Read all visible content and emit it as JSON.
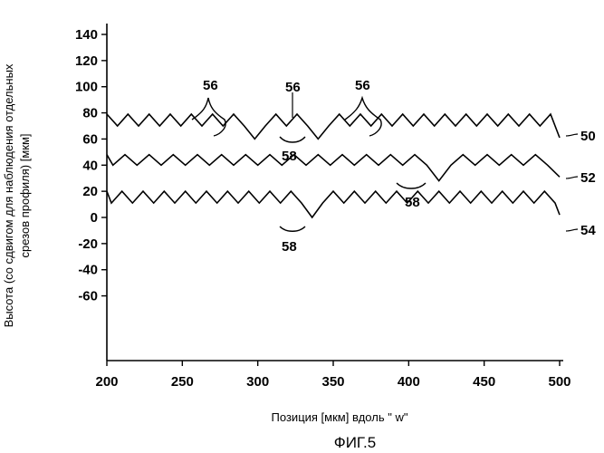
{
  "figure_caption": "ФИГ.5",
  "chart_data": {
    "type": "line",
    "xlabel": "Позиция [мкм] вдоль \" w\"",
    "ylabel_lines": [
      "Высота (со сдвигом для наблюдения отдельных",
      "срезов профиля)  [мкм]"
    ],
    "xlim": [
      200,
      500
    ],
    "ylim": [
      -85,
      150
    ],
    "x_ticks": [
      200,
      250,
      300,
      350,
      400,
      450,
      500
    ],
    "y_ticks": [
      140,
      120,
      100,
      80,
      60,
      40,
      20,
      0,
      -20,
      -40,
      -60
    ],
    "grid": false,
    "series": [
      {
        "name": "50",
        "x": [
          200,
          207,
          214,
          221,
          228,
          235,
          242,
          249,
          256,
          263,
          270,
          277,
          284,
          291,
          298,
          305,
          312,
          319,
          326,
          333,
          340,
          347,
          354,
          361,
          368,
          375,
          382,
          389,
          396,
          403,
          410,
          417,
          424,
          431,
          438,
          445,
          452,
          459,
          466,
          473,
          480,
          487,
          494,
          500
        ],
        "values": [
          79,
          70,
          79,
          70,
          79,
          70,
          79,
          70,
          79,
          70,
          79,
          70,
          79,
          70,
          60,
          70,
          79,
          70,
          79,
          70,
          60,
          70,
          79,
          70,
          79,
          70,
          79,
          70,
          79,
          70,
          79,
          70,
          79,
          70,
          79,
          70,
          79,
          70,
          79,
          70,
          79,
          70,
          79,
          61
        ]
      },
      {
        "name": "52",
        "x": [
          200,
          204,
          212,
          220,
          228,
          236,
          244,
          252,
          260,
          268,
          276,
          284,
          292,
          300,
          308,
          316,
          324,
          332,
          340,
          348,
          356,
          364,
          372,
          380,
          388,
          396,
          404,
          412,
          420,
          428,
          436,
          444,
          452,
          460,
          468,
          476,
          484,
          492,
          500
        ],
        "values": [
          48,
          40,
          48,
          40,
          48,
          40,
          48,
          40,
          48,
          40,
          48,
          40,
          48,
          40,
          48,
          40,
          48,
          40,
          48,
          40,
          48,
          40,
          48,
          40,
          48,
          40,
          48,
          40,
          28,
          40,
          48,
          40,
          48,
          40,
          48,
          40,
          48,
          40,
          31
        ]
      },
      {
        "name": "54",
        "x": [
          200,
          203,
          210,
          217,
          224,
          231,
          238,
          245,
          252,
          259,
          266,
          273,
          280,
          287,
          294,
          301,
          308,
          315,
          322,
          329,
          336,
          343,
          350,
          357,
          364,
          371,
          378,
          385,
          392,
          399,
          406,
          413,
          420,
          427,
          434,
          441,
          448,
          455,
          462,
          469,
          476,
          483,
          490,
          497,
          500
        ],
        "values": [
          20,
          11,
          20,
          11,
          20,
          11,
          20,
          11,
          20,
          11,
          20,
          11,
          20,
          11,
          20,
          11,
          20,
          11,
          20,
          11,
          0,
          11,
          20,
          11,
          20,
          11,
          20,
          11,
          20,
          11,
          20,
          11,
          20,
          11,
          20,
          11,
          20,
          11,
          20,
          11,
          20,
          11,
          20,
          11,
          2
        ]
      }
    ],
    "annotations": {
      "label_56": "56",
      "label_58": "58"
    }
  }
}
